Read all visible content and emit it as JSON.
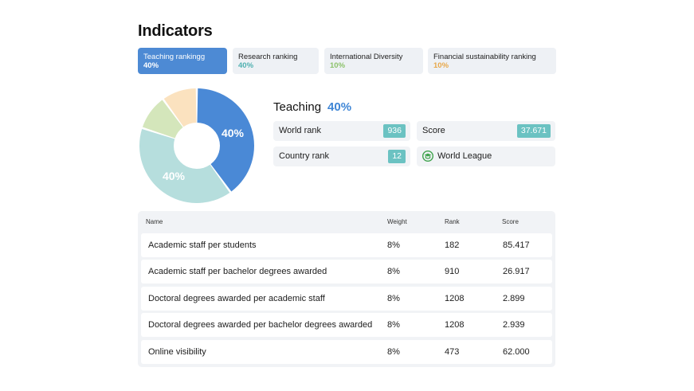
{
  "page": {
    "title": "Indicators"
  },
  "tabs": [
    {
      "label": "Teaching rankingg",
      "pct": "40%",
      "active": true,
      "color": "#ffffff"
    },
    {
      "label": "Research ranking",
      "pct": "40%",
      "active": false,
      "color": "#4fb0b0"
    },
    {
      "label": "International Diversity",
      "pct": "10%",
      "active": false,
      "color": "#8cc26a"
    },
    {
      "label": "Financial sustainability ranking",
      "pct": "10%",
      "active": false,
      "color": "#e8a84a"
    }
  ],
  "donut": {
    "segments": [
      {
        "name": "Teaching",
        "value": 40,
        "color": "#4a89d6",
        "label": "40%"
      },
      {
        "name": "Research",
        "value": 40,
        "color": "#b6dedd",
        "label": "40%"
      },
      {
        "name": "International Diversity",
        "value": 10,
        "color": "#d4e6bb"
      },
      {
        "name": "Financial sustainability",
        "value": 10,
        "color": "#fbe2bf"
      }
    ]
  },
  "detail": {
    "heading": "Teaching",
    "pct": "40%",
    "world_rank_label": "World rank",
    "world_rank_value": "936",
    "score_label": "Score",
    "score_value": "37.671",
    "country_rank_label": "Country rank",
    "country_rank_value": "12",
    "league_label": "World League",
    "league_icon": "graduation-cap-icon",
    "accent": "#6bc2c2"
  },
  "table": {
    "headers": {
      "name": "Name",
      "weight": "Weight",
      "rank": "Rank",
      "score": "Score"
    },
    "rows": [
      {
        "name": "Academic staff per students",
        "weight": "8%",
        "rank": "182",
        "score": "85.417"
      },
      {
        "name": "Academic staff per bachelor degrees awarded",
        "weight": "8%",
        "rank": "910",
        "score": "26.917"
      },
      {
        "name": "Doctoral degrees awarded per academic staff",
        "weight": "8%",
        "rank": "1208",
        "score": "2.899"
      },
      {
        "name": "Doctoral degrees awarded per bachelor degrees awarded",
        "weight": "8%",
        "rank": "1208",
        "score": "2.939"
      },
      {
        "name": "Online visibility",
        "weight": "8%",
        "rank": "473",
        "score": "62.000"
      }
    ]
  }
}
